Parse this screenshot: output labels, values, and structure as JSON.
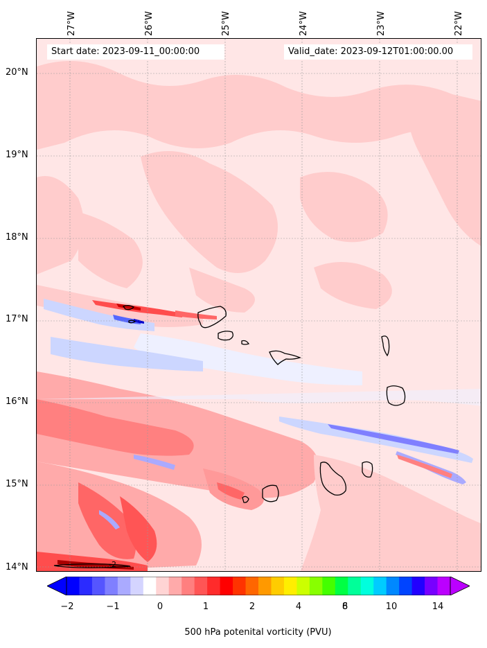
{
  "header": {
    "start_date": "Start date: 2023-09-11_00:00:00",
    "valid_date": "Valid_date: 2023-09-12T01:00:00.00"
  },
  "map": {
    "lon_labels": [
      "27°W",
      "26°W",
      "25°W",
      "24°W",
      "23°W",
      "22°W"
    ],
    "lat_labels": [
      "20°N",
      "19°N",
      "18°N",
      "17°N",
      "16°N",
      "15°N",
      "14°N"
    ],
    "contour_label": "-2",
    "gridlines": true,
    "islands": [
      "Santo Antão",
      "São Vicente",
      "Santa Luzia",
      "São Nicolau",
      "Sal",
      "Boa Vista",
      "Brava",
      "Fogo",
      "Santiago",
      "Maio"
    ]
  },
  "colorbar": {
    "label": "500 hPa potenital vorticity (PVU)",
    "ticks": [
      "−2",
      "−1",
      "0",
      "1",
      "2",
      "4",
      "6",
      "8",
      "10",
      "14"
    ],
    "colors": [
      "#0000ff",
      "#2b2bff",
      "#5555ff",
      "#7f7fff",
      "#aaaaff",
      "#d4d4ff",
      "#ffffff",
      "#ffd4d4",
      "#ffaaaa",
      "#ff7f7f",
      "#ff5555",
      "#ff2b2b",
      "#ff0000",
      "#ff3300",
      "#ff6600",
      "#ff9900",
      "#ffcc00",
      "#ffee00",
      "#ccff00",
      "#88ff00",
      "#44ff00",
      "#00ff44",
      "#00ff99",
      "#00ffdd",
      "#00ccff",
      "#0088ff",
      "#0044ff",
      "#2200ff",
      "#7700ff",
      "#bb00ff"
    ],
    "extend": "both"
  }
}
